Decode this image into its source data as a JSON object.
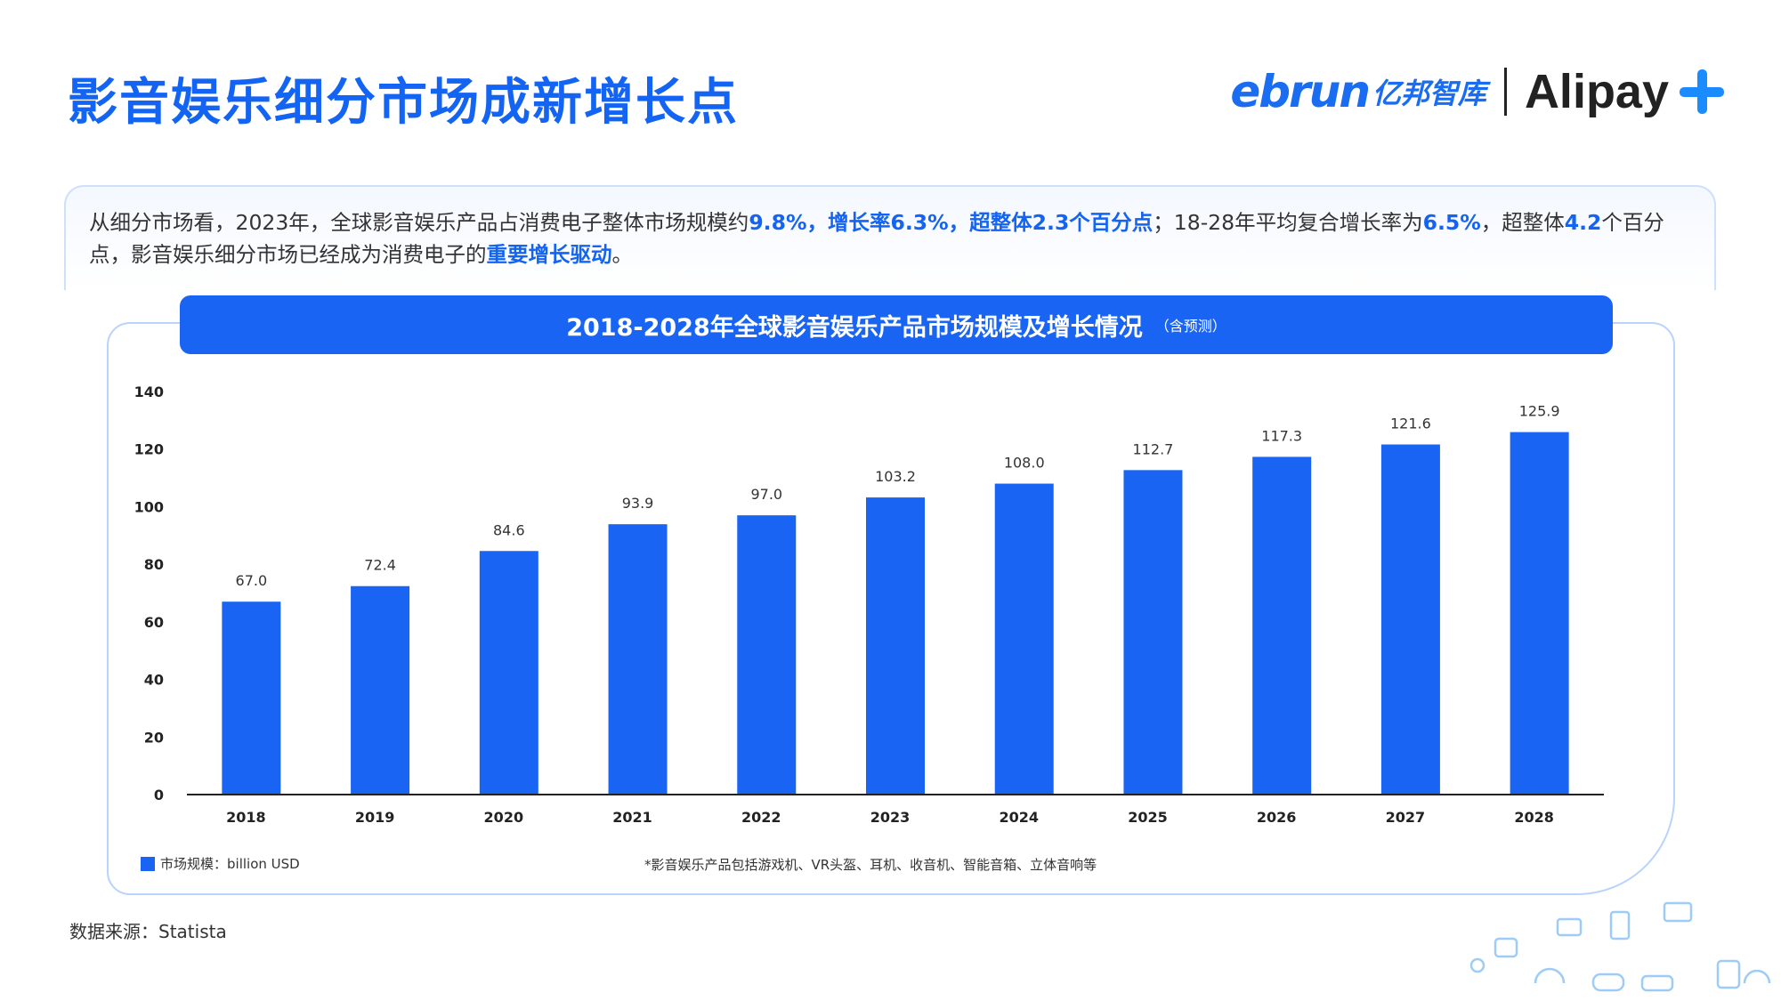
{
  "header": {
    "title": "影音娱乐细分市场成新增长点",
    "logo_ebrun": "ebrun",
    "logo_ebrun_cn": "亿邦智库",
    "logo_alipay": "Alipay",
    "logo_alipay_icon": "plus-icon"
  },
  "summary": {
    "t1": "从细分市场看，2023年，全球影音娱乐产品占消费电子整体市场规模约",
    "h1": "9.8%，增长率6.3%，超整体2.3个百分点",
    "t2": "；18-28年平均复合增长率为",
    "h2": "6.5%",
    "t3": "，超整体",
    "h3": "4.2",
    "t4": "个百分点，影音娱乐细分市场已经成为消费电子的",
    "h4": "重要增长驱动",
    "t5": "。"
  },
  "chart_data": {
    "type": "bar",
    "title": "2018-2028年全球影音娱乐产品市场规模及增长情况",
    "subtitle": "（含预测）",
    "categories": [
      "2018",
      "2019",
      "2020",
      "2021",
      "2022",
      "2023",
      "2024",
      "2025",
      "2026",
      "2027",
      "2028"
    ],
    "series": [
      {
        "name": "市场规模：billion USD",
        "values": [
          67.0,
          72.4,
          84.6,
          93.9,
          97.0,
          103.2,
          108.0,
          112.7,
          117.3,
          121.6,
          125.9
        ]
      }
    ],
    "ylim": [
      0,
      140
    ],
    "yticks": [
      0,
      20,
      40,
      60,
      80,
      100,
      120,
      140
    ],
    "grid": false,
    "legend_position": "bottom-left",
    "bar_color": "#1a64f3"
  },
  "footnote": "*影音娱乐产品包括游戏机、VR头盔、耳机、收音机、智能音箱、立体音响等",
  "source": "数据来源：Statista"
}
